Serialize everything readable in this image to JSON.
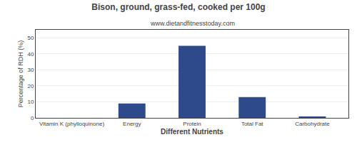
{
  "chart_data": {
    "type": "bar",
    "title": "Bison, ground, grass-fed, cooked per 100g",
    "subtitle": "www.dietandfitnesstoday.com",
    "xlabel": "Different Nutrients",
    "ylabel": "Percentage of RDH (%)",
    "categories": [
      "Vitamin K (phylloquinone)",
      "Energy",
      "Protein",
      "Total Fat",
      "Carbohydrate"
    ],
    "values": [
      0,
      9,
      45,
      13,
      0.5
    ],
    "color": "#2e4a8a",
    "ylim": [
      0,
      55
    ],
    "yticks": [
      0,
      10,
      20,
      30,
      40,
      50
    ],
    "grid": true
  }
}
